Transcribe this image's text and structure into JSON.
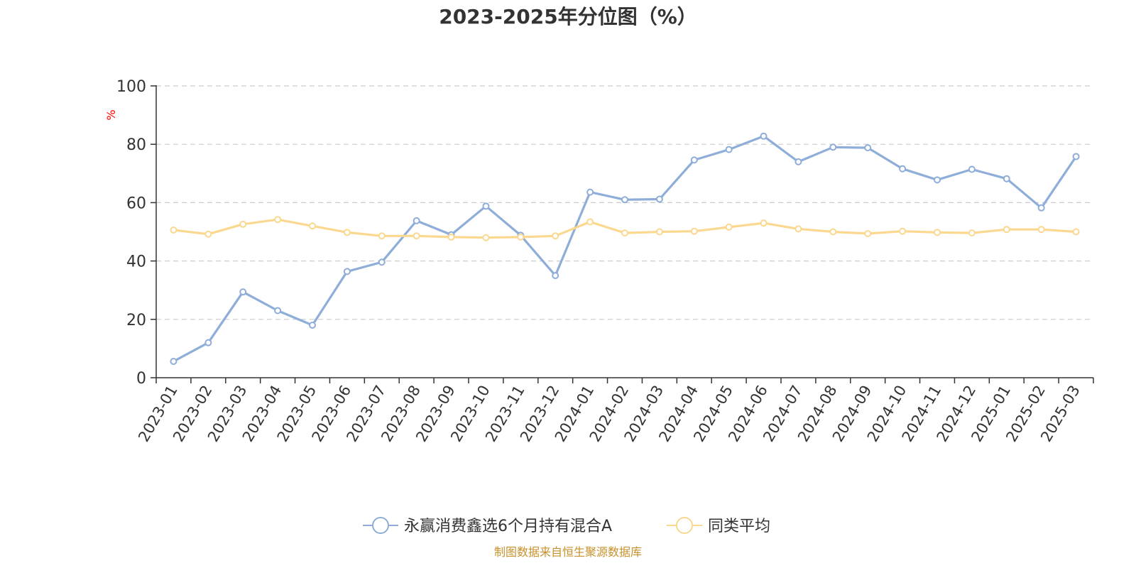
{
  "chart_data": {
    "type": "line",
    "title": "2023-2025年分位图（%）",
    "ylabel": "%",
    "xlabel": "",
    "ylim": [
      0,
      100
    ],
    "yticks": [
      0,
      20,
      40,
      60,
      80,
      100
    ],
    "grid": true,
    "legend_position": "bottom",
    "categories": [
      "2023-01",
      "2023-02",
      "2023-03",
      "2023-04",
      "2023-05",
      "2023-06",
      "2023-07",
      "2023-08",
      "2023-09",
      "2023-10",
      "2023-11",
      "2023-12",
      "2024-01",
      "2024-02",
      "2024-03",
      "2024-04",
      "2024-05",
      "2024-06",
      "2024-07",
      "2024-08",
      "2024-09",
      "2024-10",
      "2024-11",
      "2024-12",
      "2025-01",
      "2025-02",
      "2025-03"
    ],
    "series": [
      {
        "name": "永赢消费鑫选6个月持有混合A",
        "color": "#8eaed9",
        "values": [
          5.6,
          12.0,
          29.4,
          23.0,
          18.0,
          36.4,
          39.6,
          53.8,
          49.0,
          58.8,
          48.8,
          35.0,
          63.6,
          61.0,
          61.2,
          74.6,
          78.2,
          82.8,
          74.0,
          79.0,
          78.8,
          71.6,
          67.8,
          71.4,
          68.2,
          58.2,
          75.8
        ]
      },
      {
        "name": "同类平均",
        "color": "#fbd88f",
        "values": [
          50.6,
          49.2,
          52.6,
          54.2,
          52.0,
          49.8,
          48.6,
          48.6,
          48.2,
          48.0,
          48.2,
          48.6,
          53.4,
          49.6,
          50.0,
          50.2,
          51.6,
          53.0,
          51.0,
          50.0,
          49.4,
          50.2,
          49.8,
          49.6,
          50.8,
          50.8,
          50.0
        ]
      }
    ]
  },
  "colors": {
    "axis": "#333333",
    "grid": "#cccccc",
    "ylabel": "#ff0000",
    "source_note": "#c8902a"
  },
  "source_note": "制图数据来自恒生聚源数据库"
}
